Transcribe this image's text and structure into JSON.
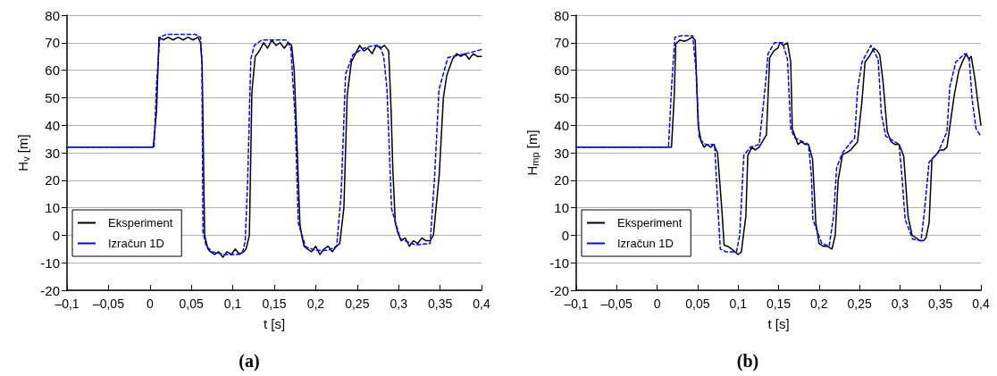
{
  "chart_data": [
    {
      "type": "line",
      "title": "(a)",
      "xlabel": "t [s]",
      "ylabel": "H$_{v}$ [m]",
      "xlim": [
        -0.1,
        0.4
      ],
      "ylim": [
        -20,
        80
      ],
      "xticks": [
        {
          "value": -0.1,
          "label": "–0,1"
        },
        {
          "value": -0.05,
          "label": "–0,05"
        },
        {
          "value": 0,
          "label": "0"
        },
        {
          "value": 0.05,
          "label": "0,05"
        },
        {
          "value": 0.1,
          "label": "0,1"
        },
        {
          "value": 0.15,
          "label": "0,15"
        },
        {
          "value": 0.2,
          "label": "0,2"
        },
        {
          "value": 0.25,
          "label": "0,25"
        },
        {
          "value": 0.3,
          "label": "0,3"
        },
        {
          "value": 0.35,
          "label": "0,35"
        },
        {
          "value": 0.4,
          "label": "0,4"
        }
      ],
      "yticks": [
        -20,
        -10,
        0,
        10,
        20,
        30,
        40,
        50,
        60,
        70,
        80
      ],
      "grid": "y",
      "legend": "bottom left",
      "marker": "none",
      "series": [
        {
          "name": "Eksperiment",
          "color": "#000000",
          "line_style": "solid",
          "x": [
            -0.1,
            0.004,
            0.008,
            0.011,
            0.016,
            0.022,
            0.028,
            0.034,
            0.04,
            0.046,
            0.052,
            0.058,
            0.061,
            0.063,
            0.066,
            0.07,
            0.073,
            0.078,
            0.083,
            0.088,
            0.093,
            0.098,
            0.103,
            0.108,
            0.113,
            0.116,
            0.12,
            0.123,
            0.127,
            0.132,
            0.137,
            0.142,
            0.147,
            0.152,
            0.157,
            0.162,
            0.167,
            0.171,
            0.174,
            0.177,
            0.179,
            0.181,
            0.183,
            0.186,
            0.19,
            0.195,
            0.2,
            0.205,
            0.21,
            0.215,
            0.22,
            0.225,
            0.229,
            0.234,
            0.238,
            0.243,
            0.248,
            0.253,
            0.258,
            0.263,
            0.268,
            0.273,
            0.278,
            0.283,
            0.288,
            0.291,
            0.293,
            0.296,
            0.299,
            0.303,
            0.308,
            0.313,
            0.318,
            0.323,
            0.328,
            0.333,
            0.338,
            0.342,
            0.349,
            0.354,
            0.358,
            0.365,
            0.37,
            0.375,
            0.38,
            0.385,
            0.39,
            0.395,
            0.4
          ],
          "values": [
            32,
            32,
            45,
            72,
            71,
            72,
            71,
            72,
            71,
            72,
            71,
            72,
            70,
            62,
            0,
            -5,
            -6,
            -7,
            -6,
            -8,
            -6,
            -7,
            -5,
            -7,
            -6,
            -5,
            0,
            52,
            65,
            67,
            70,
            68,
            71,
            69,
            70,
            68,
            70,
            69,
            60,
            37,
            20,
            4,
            0,
            -4,
            -5,
            -6,
            -4,
            -7,
            -5,
            -4,
            -6,
            -4,
            -3,
            10,
            51,
            63,
            66,
            69,
            67,
            68,
            66,
            69,
            68,
            69,
            67,
            45,
            24,
            4.5,
            1,
            -2,
            -1,
            -4,
            -2,
            -3,
            -1,
            -2,
            -2,
            0,
            22,
            50,
            58,
            64,
            66,
            65,
            66,
            64,
            66,
            65,
            65
          ]
        },
        {
          "name": "Izračun 1D",
          "color": "#0000ff",
          "line_style": "dashed",
          "x": [
            -0.1,
            0.005,
            0.008,
            0.012,
            0.02,
            0.04,
            0.055,
            0.061,
            0.0627,
            0.064,
            0.068,
            0.075,
            0.09,
            0.105,
            0.112,
            0.115,
            0.118,
            0.1217,
            0.126,
            0.135,
            0.15,
            0.165,
            0.17,
            0.1753,
            0.179,
            0.1878,
            0.2,
            0.215,
            0.2253,
            0.2307,
            0.236,
            0.245,
            0.258,
            0.27,
            0.277,
            0.282,
            0.286,
            0.2915,
            0.302,
            0.32,
            0.338,
            0.3433,
            0.3487,
            0.3594,
            0.381,
            0.4
          ],
          "values": [
            32,
            32,
            55,
            72,
            73,
            73,
            73,
            72,
            64,
            1.2,
            -4,
            -6,
            -7,
            -7,
            -6,
            -2,
            20.7,
            64,
            69,
            71,
            71,
            71,
            68,
            42,
            4.4,
            -4.2,
            -5.5,
            -5.5,
            -4,
            15,
            58.6,
            65.7,
            68,
            69,
            69,
            65,
            53,
            9.6,
            -1.3,
            -3.5,
            -3,
            20.7,
            53,
            64.6,
            66,
            67.5
          ]
        }
      ]
    },
    {
      "type": "line",
      "title": "(b)",
      "xlabel": "t [s]",
      "ylabel": "H$_{mp}$ [m]",
      "xlim": [
        -0.1,
        0.4
      ],
      "ylim": [
        -20,
        80
      ],
      "xticks": [
        {
          "value": -0.1,
          "label": "–0,1"
        },
        {
          "value": -0.05,
          "label": "–0,05"
        },
        {
          "value": 0,
          "label": "0"
        },
        {
          "value": 0.05,
          "label": "0,05"
        },
        {
          "value": 0.1,
          "label": "0,1"
        },
        {
          "value": 0.15,
          "label": "0,15"
        },
        {
          "value": 0.2,
          "label": "0,2"
        },
        {
          "value": 0.25,
          "label": "0,25"
        },
        {
          "value": 0.3,
          "label": "0,3"
        },
        {
          "value": 0.35,
          "label": "0,35"
        },
        {
          "value": 0.4,
          "label": "0,4"
        }
      ],
      "yticks": [
        -20,
        -10,
        0,
        10,
        20,
        30,
        40,
        50,
        60,
        70,
        80
      ],
      "grid": "y",
      "legend": "bottom left",
      "marker": "none",
      "series": [
        {
          "name": "Eksperiment",
          "color": "#000000",
          "line_style": "solid",
          "x": [
            -0.1,
            0.0177,
            0.021,
            0.023,
            0.028,
            0.033,
            0.038,
            0.043,
            0.047,
            0.0507,
            0.0544,
            0.058,
            0.062,
            0.066,
            0.07,
            0.0746,
            0.08,
            0.0827,
            0.087,
            0.092,
            0.096,
            0.1,
            0.104,
            0.1096,
            0.112,
            0.117,
            0.121,
            0.126,
            0.135,
            0.139,
            0.144,
            0.149,
            0.152,
            0.156,
            0.161,
            0.165,
            0.167,
            0.174,
            0.178,
            0.183,
            0.187,
            0.192,
            0.196,
            0.2,
            0.205,
            0.21,
            0.216,
            0.22,
            0.2236,
            0.229,
            0.234,
            0.239,
            0.2476,
            0.253,
            0.2568,
            0.262,
            0.268,
            0.272,
            0.275,
            0.279,
            0.2843,
            0.289,
            0.294,
            0.299,
            0.3046,
            0.31,
            0.315,
            0.32,
            0.325,
            0.329,
            0.332,
            0.336,
            0.3395,
            0.344,
            0.349,
            0.354,
            0.358,
            0.367,
            0.3726,
            0.377,
            0.382,
            0.385,
            0.388,
            0.3925,
            0.3966,
            0.4
          ],
          "values": [
            32,
            32,
            50,
            69.5,
            71,
            70.5,
            71,
            72,
            71,
            40,
            34,
            32,
            33,
            32,
            33,
            30,
            9,
            -3.6,
            -4,
            -5,
            -6,
            -7,
            -6,
            7,
            29,
            32,
            31,
            32,
            36.5,
            64.5,
            67,
            68,
            70,
            69,
            70,
            63,
            38.7,
            33,
            34,
            33,
            33,
            27.7,
            4.6,
            -3,
            -4,
            -4,
            -5,
            0,
            20,
            29.3,
            30,
            31,
            34,
            48.6,
            62.9,
            65,
            68,
            67,
            65.6,
            56,
            37.6,
            34,
            33,
            33,
            28.8,
            6.8,
            0,
            -1,
            -2,
            -2,
            -1,
            4.6,
            27.7,
            29,
            31,
            31,
            32,
            50.8,
            59.6,
            63,
            66,
            64,
            65,
            57,
            47.5,
            40
          ]
        },
        {
          "name": "Izračun 1D",
          "color": "#0000ff",
          "line_style": "dashed",
          "x": [
            -0.1,
            0.014,
            0.018,
            0.022,
            0.03,
            0.044,
            0.048,
            0.052,
            0.06,
            0.071,
            0.075,
            0.078,
            0.085,
            0.098,
            0.102,
            0.107,
            0.115,
            0.126,
            0.1335,
            0.137,
            0.145,
            0.155,
            0.161,
            0.165,
            0.17,
            0.187,
            0.1905,
            0.1924,
            0.2034,
            0.2125,
            0.218,
            0.2218,
            0.229,
            0.244,
            0.2476,
            0.253,
            0.264,
            0.273,
            0.277,
            0.2825,
            0.299,
            0.3028,
            0.3064,
            0.3157,
            0.326,
            0.3303,
            0.336,
            0.347,
            0.358,
            0.3616,
            0.369,
            0.38,
            0.3856,
            0.389,
            0.394,
            0.4
          ],
          "values": [
            32,
            32,
            55,
            72,
            72.5,
            72.5,
            60,
            35,
            33,
            33,
            10,
            -5,
            -6,
            -6,
            0,
            29,
            32,
            33,
            54,
            66,
            70,
            70,
            64,
            38.7,
            35.4,
            33,
            22,
            5.7,
            -3,
            -4,
            7,
            24.6,
            30,
            35.4,
            53,
            62.9,
            69,
            64,
            44,
            36,
            33,
            20,
            5.7,
            -1.4,
            -2,
            9,
            26.6,
            30,
            37.6,
            54,
            63,
            66,
            64,
            49.7,
            38.7,
            36
          ]
        }
      ]
    }
  ]
}
